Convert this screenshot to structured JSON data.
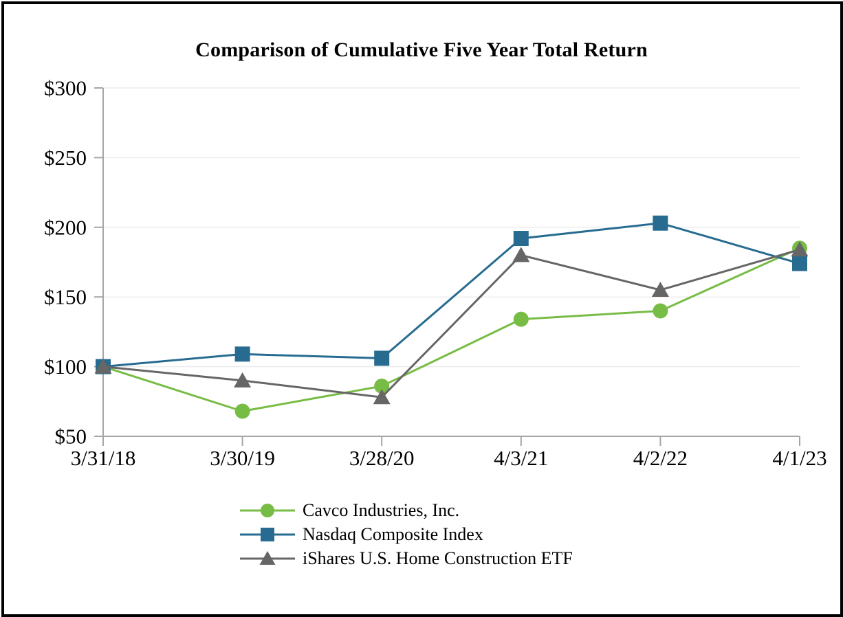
{
  "chart_data": {
    "type": "line",
    "title": "Comparison of Cumulative Five Year Total Return",
    "categories": [
      "3/31/18",
      "3/30/19",
      "3/28/20",
      "4/3/21",
      "4/2/22",
      "4/1/23"
    ],
    "series": [
      {
        "name": "Cavco Industries, Inc.",
        "marker": "circle",
        "color": "#77BC45",
        "values": [
          100,
          68,
          86,
          134,
          140,
          185
        ]
      },
      {
        "name": "Nasdaq Composite Index",
        "marker": "square",
        "color": "#276C90",
        "values": [
          100,
          109,
          106,
          192,
          203,
          174
        ]
      },
      {
        "name": "iShares U.S. Home Construction ETF",
        "marker": "triangle",
        "color": "#666666",
        "values": [
          100,
          90,
          78,
          180,
          155,
          184
        ]
      }
    ],
    "y_axis": {
      "min": 50,
      "max": 300,
      "ticks": [
        {
          "value": 50,
          "label": "$50"
        },
        {
          "value": 100,
          "label": "$100"
        },
        {
          "value": 150,
          "label": "$150"
        },
        {
          "value": 200,
          "label": "$200"
        },
        {
          "value": 250,
          "label": "$250"
        },
        {
          "value": 300,
          "label": "$300"
        }
      ]
    },
    "legend_position": "bottom",
    "grid": true
  },
  "colors": {
    "axis": "#A6A6A6",
    "grid": "#ECECEC",
    "text": "#000000",
    "background": "#FFFFFF",
    "border": "#000000"
  }
}
